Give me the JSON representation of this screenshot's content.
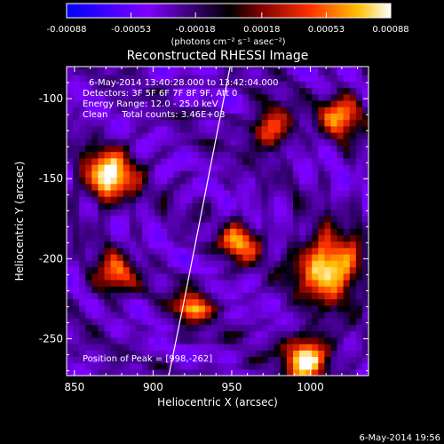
{
  "chart_data": {
    "type": "heatmap",
    "title": "Reconstructed RHESSI Image",
    "xlabel": "Heliocentric X (arcsec)",
    "ylabel": "Heliocentric Y (arcsec)",
    "xlim": [
      845,
      1037
    ],
    "ylim": [
      -273,
      -80
    ],
    "xticks": [
      850,
      900,
      950,
      1000
    ],
    "yticks": [
      -100,
      -150,
      -200,
      -250
    ],
    "colorbar": {
      "min": -0.00088,
      "max": 0.00088,
      "ticks": [
        "-0.00088",
        "-0.00053",
        "-0.00018",
        "0.00018",
        "0.00053",
        "0.00088"
      ],
      "unit_label": "(photons cm⁻² s⁻¹ asec⁻²)"
    },
    "annotations": [
      "6-May-2014 13:40:28.000 to 13:42:04.000",
      "Detectors: 3F 5F 6F 7F 8F 9F, Att 0",
      "Energy Range: 12.0 - 25.0 keV",
      "Clean     Total counts: 3.46E+03",
      "Position of Peak = [998,-262]"
    ],
    "limb_curve": {
      "x": [
        910,
        919,
        928,
        936,
        943,
        949
      ],
      "y": [
        -273,
        -230,
        -185,
        -145,
        -110,
        -80
      ]
    },
    "sources": [
      {
        "x": 872,
        "y": -148,
        "peak": 0.00088,
        "sigma": 11
      },
      {
        "x": 1012,
        "y": -205,
        "peak": 0.00088,
        "sigma": 14
      },
      {
        "x": 998,
        "y": -262,
        "peak": 0.00088,
        "sigma": 10
      },
      {
        "x": 975,
        "y": -118,
        "peak": 0.0005,
        "sigma": 9
      },
      {
        "x": 955,
        "y": -190,
        "peak": 0.0006,
        "sigma": 8
      },
      {
        "x": 875,
        "y": -210,
        "peak": 0.00045,
        "sigma": 9
      },
      {
        "x": 925,
        "y": -230,
        "peak": 0.0005,
        "sigma": 8
      },
      {
        "x": 1020,
        "y": -110,
        "peak": 0.0006,
        "sigma": 9
      }
    ]
  },
  "footer": {
    "timestamp": "6-May-2014 19:56"
  }
}
